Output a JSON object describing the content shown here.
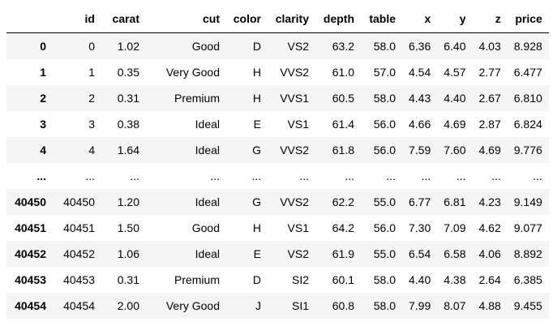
{
  "table": {
    "columns": [
      "",
      "id",
      "carat",
      "cut",
      "color",
      "clarity",
      "depth",
      "table",
      "x",
      "y",
      "z",
      "price"
    ],
    "rows": [
      {
        "index": "0",
        "cells": [
          "0",
          "1.02",
          "Good",
          "D",
          "VS2",
          "63.2",
          "58.0",
          "6.36",
          "6.40",
          "4.03",
          "8.928"
        ]
      },
      {
        "index": "1",
        "cells": [
          "1",
          "0.35",
          "Very Good",
          "H",
          "VVS2",
          "61.0",
          "57.0",
          "4.54",
          "4.57",
          "2.77",
          "6.477"
        ]
      },
      {
        "index": "2",
        "cells": [
          "2",
          "0.31",
          "Premium",
          "H",
          "VVS1",
          "60.5",
          "58.0",
          "4.43",
          "4.40",
          "2.67",
          "6.810"
        ]
      },
      {
        "index": "3",
        "cells": [
          "3",
          "0.38",
          "Ideal",
          "E",
          "VS1",
          "61.4",
          "56.0",
          "4.66",
          "4.69",
          "2.87",
          "6.824"
        ]
      },
      {
        "index": "4",
        "cells": [
          "4",
          "1.64",
          "Ideal",
          "G",
          "VVS2",
          "61.8",
          "56.0",
          "7.59",
          "7.60",
          "4.69",
          "9.776"
        ]
      },
      {
        "index": "...",
        "cells": [
          "...",
          "...",
          "...",
          "...",
          "...",
          "...",
          "...",
          "...",
          "...",
          "...",
          "..."
        ]
      },
      {
        "index": "40450",
        "cells": [
          "40450",
          "1.20",
          "Ideal",
          "G",
          "VVS2",
          "62.2",
          "55.0",
          "6.77",
          "6.81",
          "4.23",
          "9.149"
        ]
      },
      {
        "index": "40451",
        "cells": [
          "40451",
          "1.50",
          "Good",
          "H",
          "VS1",
          "64.2",
          "56.0",
          "7.30",
          "7.09",
          "4.62",
          "9.077"
        ]
      },
      {
        "index": "40452",
        "cells": [
          "40452",
          "1.06",
          "Ideal",
          "E",
          "VS2",
          "61.9",
          "55.0",
          "6.54",
          "6.58",
          "4.06",
          "8.892"
        ]
      },
      {
        "index": "40453",
        "cells": [
          "40453",
          "0.31",
          "Premium",
          "D",
          "SI2",
          "60.1",
          "58.0",
          "4.40",
          "4.38",
          "2.64",
          "6.385"
        ]
      },
      {
        "index": "40454",
        "cells": [
          "40454",
          "2.00",
          "Very Good",
          "J",
          "SI1",
          "60.8",
          "58.0",
          "7.99",
          "8.07",
          "4.88",
          "9.455"
        ]
      }
    ]
  },
  "colors": {
    "stripe": "#f5f5f5",
    "header_rule": "#000000"
  }
}
